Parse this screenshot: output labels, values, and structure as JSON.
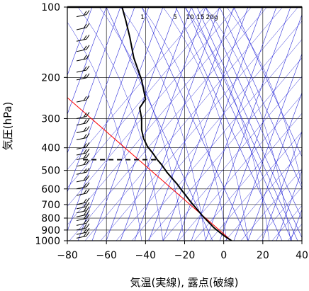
{
  "chart_data": {
    "type": "line",
    "xlabel": "気温(実線), 露点(破線)",
    "ylabel": "気圧(hPa)",
    "x_ticks": [
      -80,
      -60,
      -40,
      -20,
      0,
      20,
      40
    ],
    "y_ticks": [
      100,
      200,
      300,
      400,
      500,
      600,
      700,
      800,
      900,
      1000
    ],
    "xlim": [
      -80,
      40
    ],
    "ylim": [
      1000,
      100
    ],
    "y_scale": "log",
    "grid": true,
    "mixing_ratio_labels": [
      "1",
      "5",
      "10",
      "15",
      "20g"
    ],
    "series": [
      {
        "style": "solid",
        "color": "#000000",
        "points": [
          {
            "t": 4,
            "p": 1000
          },
          {
            "t": 0,
            "p": 950
          },
          {
            "t": -5,
            "p": 880
          },
          {
            "t": -11,
            "p": 780
          },
          {
            "t": -17,
            "p": 680
          },
          {
            "t": -22,
            "p": 600
          },
          {
            "t": -24,
            "p": 570
          },
          {
            "t": -29,
            "p": 510
          },
          {
            "t": -32,
            "p": 470
          },
          {
            "t": -34,
            "p": 450
          },
          {
            "t": -36,
            "p": 425
          },
          {
            "t": -39,
            "p": 395
          },
          {
            "t": -41,
            "p": 365
          },
          {
            "t": -42,
            "p": 335
          },
          {
            "t": -42,
            "p": 300
          },
          {
            "t": -43,
            "p": 270
          },
          {
            "t": -40,
            "p": 248
          },
          {
            "t": -42,
            "p": 205
          },
          {
            "t": -46,
            "p": 165
          },
          {
            "t": -48,
            "p": 135
          },
          {
            "t": -50,
            "p": 115
          },
          {
            "t": -52,
            "p": 100
          }
        ]
      },
      {
        "style": "dashed",
        "color": "#000000",
        "points": [
          {
            "t": -72,
            "p": 450
          },
          {
            "t": -34,
            "p": 450
          }
        ]
      }
    ],
    "reference_line": {
      "color": "#ff0000",
      "points": [
        {
          "t": 4,
          "p": 1000
        },
        {
          "t": -81,
          "p": 240
        }
      ]
    }
  }
}
